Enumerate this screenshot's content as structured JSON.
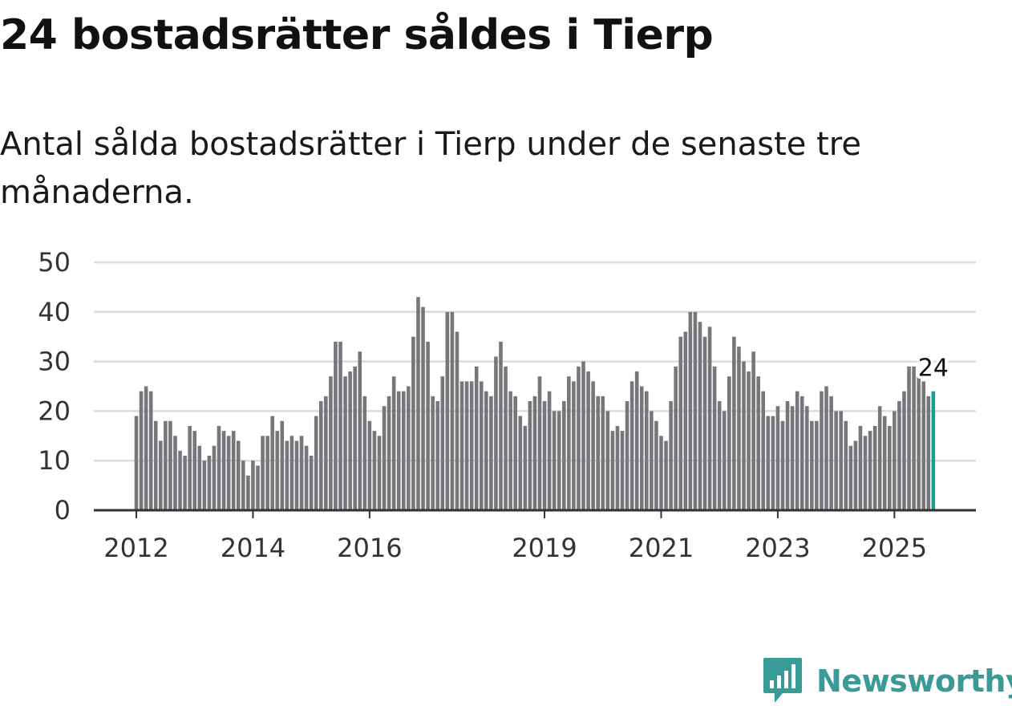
{
  "header": {
    "title": "24 bostadsrätter såldes i Tierp",
    "subtitle": "Antal sålda bostadsrätter i Tierp under de senaste tre månaderna."
  },
  "chart_data": {
    "type": "bar",
    "title": "24 bostadsrätter såldes i Tierp",
    "subtitle": "Antal sålda bostadsrätter i Tierp under de senaste tre månaderna.",
    "xlabel": "",
    "ylabel": "",
    "ylim": [
      0,
      50
    ],
    "yticks": [
      0,
      10,
      20,
      30,
      40,
      50
    ],
    "grid": true,
    "start": "2012-01",
    "x_tick_labels": [
      {
        "label": "2012",
        "index": 0
      },
      {
        "label": "2014",
        "index": 24
      },
      {
        "label": "2016",
        "index": 48
      },
      {
        "label": "2019",
        "index": 84
      },
      {
        "label": "2021",
        "index": 108
      },
      {
        "label": "2023",
        "index": 132
      },
      {
        "label": "2025",
        "index": 156
      }
    ],
    "values": [
      19,
      24,
      25,
      24,
      18,
      14,
      18,
      18,
      15,
      12,
      11,
      17,
      16,
      13,
      10,
      11,
      13,
      17,
      16,
      15,
      16,
      14,
      10,
      7,
      10,
      9,
      15,
      15,
      19,
      16,
      18,
      14,
      15,
      14,
      15,
      13,
      11,
      19,
      22,
      23,
      27,
      34,
      34,
      27,
      28,
      29,
      32,
      23,
      18,
      16,
      15,
      21,
      23,
      27,
      24,
      24,
      25,
      35,
      43,
      41,
      34,
      23,
      22,
      27,
      40,
      40,
      36,
      26,
      26,
      26,
      29,
      26,
      24,
      23,
      31,
      34,
      29,
      24,
      23,
      19,
      17,
      22,
      23,
      27,
      22,
      24,
      20,
      20,
      22,
      27,
      26,
      29,
      30,
      28,
      26,
      23,
      23,
      20,
      16,
      17,
      16,
      22,
      26,
      28,
      25,
      24,
      20,
      18,
      15,
      14,
      22,
      29,
      35,
      36,
      40,
      40,
      38,
      35,
      37,
      29,
      22,
      20,
      27,
      35,
      33,
      30,
      28,
      32,
      27,
      24,
      19,
      19,
      21,
      18,
      22,
      21,
      24,
      23,
      21,
      18,
      18,
      24,
      25,
      23,
      20,
      20,
      18,
      13,
      14,
      17,
      15,
      16,
      17,
      21,
      19,
      17,
      20,
      22,
      24,
      29,
      29,
      27,
      26,
      23,
      24
    ],
    "highlight": {
      "index": 164,
      "value": 24,
      "label": "24"
    },
    "colors": {
      "bar": "#77767b",
      "highlight": "#1c9d94",
      "grid": "#dcdcdc",
      "axis": "#333333",
      "tick_text": "#333333"
    }
  },
  "branding": {
    "name": "Newsworthy",
    "icon": "newsworthy-logo-icon",
    "color": "#3a9a98"
  }
}
